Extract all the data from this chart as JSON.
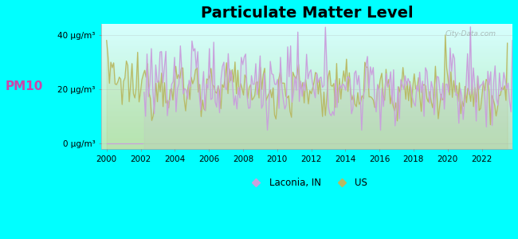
{
  "title": "Particulate Matter Level",
  "ylabel": "PM10",
  "ytick_labels": [
    "0 μg/m³",
    "20 μg/m³",
    "40 μg/m³"
  ],
  "ytick_values": [
    0,
    20,
    40
  ],
  "ylim": [
    -2,
    44
  ],
  "xlim": [
    1999.7,
    2023.8
  ],
  "xticks": [
    2000,
    2002,
    2004,
    2006,
    2008,
    2010,
    2012,
    2014,
    2016,
    2018,
    2020,
    2022
  ],
  "bg_outer": "#00FFFF",
  "bg_plot_top": "#ffffff",
  "bg_plot_bottom": "#d8e8b0",
  "laconia_color": "#c9a0dc",
  "us_color": "#b8b860",
  "laconia_label": "Laconia, IN",
  "us_label": "US",
  "watermark": "City-Data.com",
  "ylabel_color": "#cc44aa",
  "title_fontsize": 14,
  "tick_fontsize": 7.5,
  "ylabel_fontsize": 11
}
